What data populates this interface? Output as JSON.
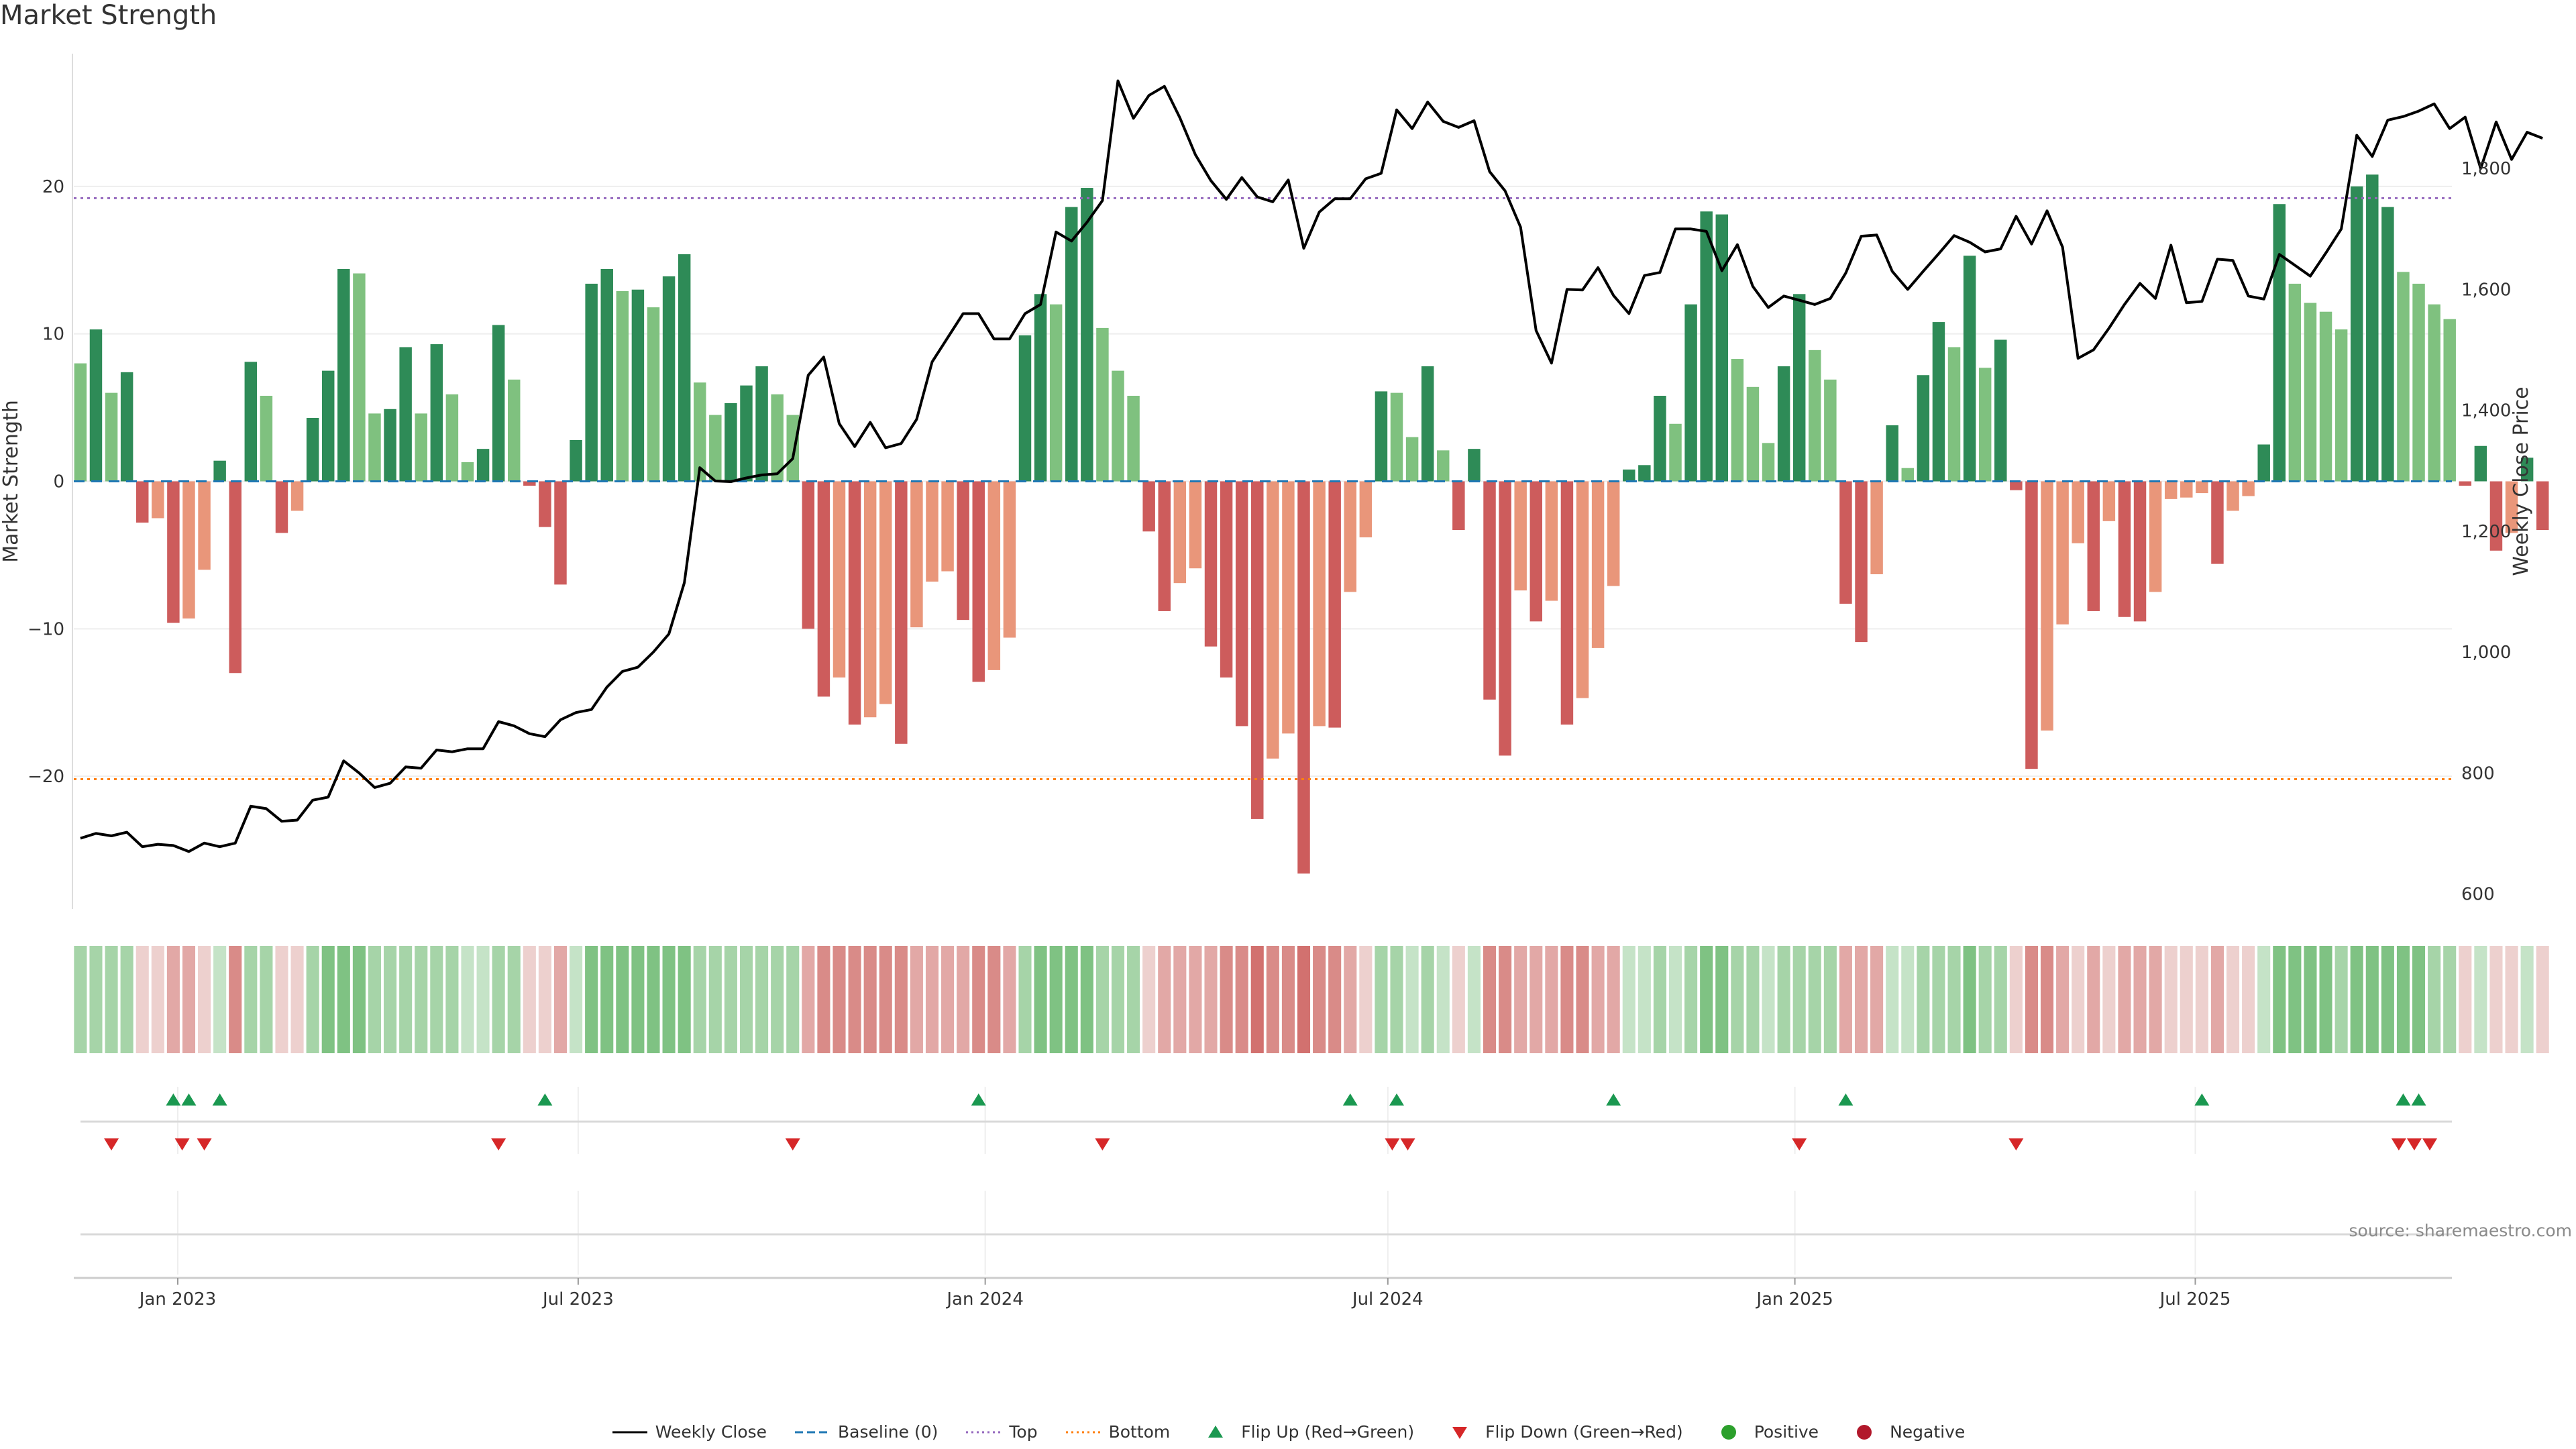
{
  "title": "Market Strength",
  "source_note": "source: sharemaestro.com",
  "colors": {
    "strong_green": "#2e8b57",
    "light_green": "#7fc17f",
    "strong_red": "#cd5c5c",
    "light_red": "#e9967a",
    "close_line": "#000000",
    "baseline": "#1f77b4",
    "top_line": "#9467bd",
    "bottom_line": "#ff7f0e",
    "flip_up": "#1a9850",
    "flip_down": "#d62728",
    "positive": "#2ca02c",
    "negative": "#b2182b"
  },
  "legend": [
    {
      "name": "weekly-close",
      "label": "Weekly Close",
      "kind": "line-solid",
      "color": "#000000"
    },
    {
      "name": "baseline",
      "label": "Baseline (0)",
      "kind": "line-dash",
      "color": "#1f77b4"
    },
    {
      "name": "top",
      "label": "Top",
      "kind": "line-dot",
      "color": "#9467bd"
    },
    {
      "name": "bottom",
      "label": "Bottom",
      "kind": "line-dot",
      "color": "#ff7f0e"
    },
    {
      "name": "flip-up",
      "label": "Flip Up (Red→Green)",
      "kind": "tri-up",
      "color": "#1a9850"
    },
    {
      "name": "flip-down",
      "label": "Flip Down (Green→Red)",
      "kind": "tri-down",
      "color": "#d62728"
    },
    {
      "name": "positive",
      "label": "Positive",
      "kind": "dot",
      "color": "#2ca02c"
    },
    {
      "name": "negative",
      "label": "Negative",
      "kind": "dot",
      "color": "#b2182b"
    }
  ],
  "chart_data": {
    "type": "bar",
    "xlabel": "",
    "ylabel": "Market Strength",
    "y2label": "Weekly Close Price",
    "ylim": [
      -29,
      29
    ],
    "y2lim": [
      575,
      1990
    ],
    "yticks": [
      -20,
      -10,
      0,
      10,
      20
    ],
    "y2ticks": [
      600,
      800,
      1000,
      1200,
      1400,
      1600,
      1800
    ],
    "y2tick_labels": [
      "600",
      "800",
      "1,000",
      "1,200",
      "1,400",
      "1,600",
      "1,800"
    ],
    "xlim": [
      "2022-11-15",
      "2025-10-25"
    ],
    "xticks": [
      {
        "date": "2023-01-01",
        "label": "Jan 2023"
      },
      {
        "date": "2023-07-01",
        "label": "Jul 2023"
      },
      {
        "date": "2024-01-01",
        "label": "Jan 2024"
      },
      {
        "date": "2024-07-01",
        "label": "Jul 2024"
      },
      {
        "date": "2025-01-01",
        "label": "Jan 2025"
      },
      {
        "date": "2025-07-01",
        "label": "Jul 2025"
      }
    ],
    "top_level": 19.2,
    "bottom_level": -20.2,
    "grid": true,
    "start_date": "2022-11-18",
    "strength": [
      8,
      10.3,
      6,
      7.4,
      -2.8,
      -2.5,
      -9.6,
      -9.3,
      -6,
      1.4,
      -13,
      8.1,
      5.8,
      -3.5,
      -2,
      4.3,
      7.5,
      14.4,
      14.1,
      4.6,
      4.9,
      9.1,
      4.6,
      9.3,
      5.9,
      1.3,
      2.2,
      10.6,
      6.9,
      -0.3,
      -3.1,
      -7,
      2.8,
      13.4,
      14.4,
      12.9,
      13,
      11.8,
      13.9,
      15.4,
      6.7,
      4.5,
      5.3,
      6.5,
      7.8,
      5.9,
      4.5,
      -10,
      -14.6,
      -13.3,
      -16.5,
      -16,
      -15.1,
      -17.8,
      -9.9,
      -6.8,
      -6.1,
      -9.4,
      -13.6,
      -12.8,
      -10.6,
      9.9,
      12.7,
      12,
      18.6,
      19.9,
      10.4,
      7.5,
      5.8,
      -3.4,
      -8.8,
      -6.9,
      -5.9,
      -11.2,
      -13.3,
      -16.6,
      -22.9,
      -18.8,
      -17.1,
      -26.6,
      -16.6,
      -16.7,
      -7.5,
      -3.8,
      6.1,
      6,
      3,
      7.8,
      2.1,
      -3.3,
      2.2,
      -14.8,
      -18.6,
      -7.4,
      -9.5,
      -8.1,
      -16.5,
      -14.7,
      -11.3,
      -7.1,
      0.8,
      1.1,
      5.8,
      3.9,
      12,
      18.3,
      18.1,
      8.3,
      6.4,
      2.6,
      7.8,
      12.7,
      8.9,
      6.9,
      -8.3,
      -10.9,
      -6.3,
      3.8,
      0.9,
      7.2,
      10.8,
      9.1,
      15.3,
      7.7,
      9.6,
      -0.6,
      -19.5,
      -16.9,
      -9.7,
      -4.2,
      -8.8,
      -2.7,
      -9.2,
      -9.5,
      -7.5,
      -1.2,
      -1.1,
      -0.8,
      -5.6,
      -2,
      -1,
      2.5,
      18.8,
      13.4,
      12.1,
      11.5,
      10.3,
      20,
      20.8,
      18.6,
      14.2,
      13.4,
      12,
      11,
      -0.3,
      2.4,
      -4.7,
      -3.5,
      1.6,
      -3.3
    ],
    "close": [
      692,
      700,
      696,
      702,
      678,
      682,
      680,
      670,
      684,
      678,
      684,
      745,
      741,
      720,
      722,
      755,
      760,
      820,
      800,
      776,
      783,
      810,
      808,
      838,
      835,
      840,
      840,
      885,
      878,
      865,
      860,
      888,
      900,
      905,
      942,
      968,
      975,
      1000,
      1030,
      1115,
      1305,
      1283,
      1282,
      1288,
      1293,
      1295,
      1320,
      1458,
      1488,
      1378,
      1340,
      1380,
      1338,
      1345,
      1385,
      1480,
      1520,
      1560,
      1560,
      1518,
      1518,
      1560,
      1575,
      1695,
      1680,
      1711,
      1747,
      1945,
      1883,
      1921,
      1936,
      1884,
      1823,
      1780,
      1749,
      1785,
      1753,
      1745,
      1781,
      1668,
      1728,
      1750,
      1750,
      1783,
      1792,
      1897,
      1866,
      1910,
      1878,
      1868,
      1879,
      1795,
      1763,
      1703,
      1532,
      1478,
      1600,
      1599,
      1636,
      1590,
      1560,
      1623,
      1628,
      1700,
      1700,
      1696,
      1631,
      1674,
      1605,
      1570,
      1589,
      1582,
      1575,
      1585,
      1627,
      1688,
      1690,
      1630,
      1600,
      1630,
      1659,
      1689,
      1678,
      1662,
      1667,
      1721,
      1675,
      1730,
      1670,
      1486,
      1500,
      1536,
      1575,
      1610,
      1585,
      1673,
      1578,
      1580,
      1650,
      1648,
      1589,
      1584,
      1658,
      1640,
      1622,
      1660,
      1700,
      1855,
      1820,
      1880,
      1886,
      1895,
      1907,
      1866,
      1885,
      1800,
      1877,
      1815,
      1860,
      1850
    ],
    "heat": [
      2,
      2,
      2,
      2,
      -1,
      -1,
      -2,
      -2,
      -1,
      1,
      -3,
      2,
      2,
      -1,
      -1,
      2,
      3,
      3,
      3,
      2,
      2,
      2,
      2,
      2,
      2,
      1,
      1,
      2,
      2,
      -1,
      -1,
      -2,
      1,
      3,
      3,
      3,
      3,
      3,
      3,
      3,
      2,
      2,
      2,
      2,
      2,
      2,
      2,
      -2,
      -3,
      -3,
      -3,
      -3,
      -3,
      -3,
      -2,
      -2,
      -2,
      -2,
      -3,
      -3,
      -2,
      2,
      3,
      3,
      3,
      3,
      2,
      2,
      2,
      -1,
      -2,
      -2,
      -2,
      -2,
      -3,
      -3,
      -4,
      -3,
      -3,
      -4,
      -3,
      -3,
      -2,
      -1,
      2,
      2,
      1,
      2,
      1,
      -1,
      1,
      -3,
      -3,
      -2,
      -2,
      -2,
      -3,
      -3,
      -2,
      -2,
      1,
      1,
      2,
      1,
      2,
      3,
      3,
      2,
      2,
      1,
      2,
      2,
      2,
      2,
      -2,
      -2,
      -2,
      1,
      1,
      2,
      2,
      2,
      3,
      2,
      2,
      -1,
      -3,
      -3,
      -2,
      -1,
      -2,
      -1,
      -2,
      -2,
      -2,
      -1,
      -1,
      -1,
      -2,
      -1,
      -1,
      1,
      3,
      3,
      3,
      3,
      2,
      3,
      3,
      3,
      3,
      3,
      2,
      2,
      -1,
      1,
      -1,
      -1,
      1,
      -1
    ],
    "flip_up": [
      "2022-12-30",
      "2023-01-06",
      "2023-01-20",
      "2023-06-16",
      "2023-12-29",
      "2024-06-14",
      "2024-07-05",
      "2024-10-11",
      "2025-01-24",
      "2025-07-04",
      "2025-10-03",
      "2025-10-10"
    ],
    "flip_down": [
      "2022-12-02",
      "2023-01-03",
      "2023-01-13",
      "2023-05-26",
      "2023-10-06",
      "2024-02-23",
      "2024-07-03",
      "2024-07-10",
      "2025-01-03",
      "2025-04-11",
      "2025-10-01",
      "2025-10-08",
      "2025-10-15"
    ]
  }
}
